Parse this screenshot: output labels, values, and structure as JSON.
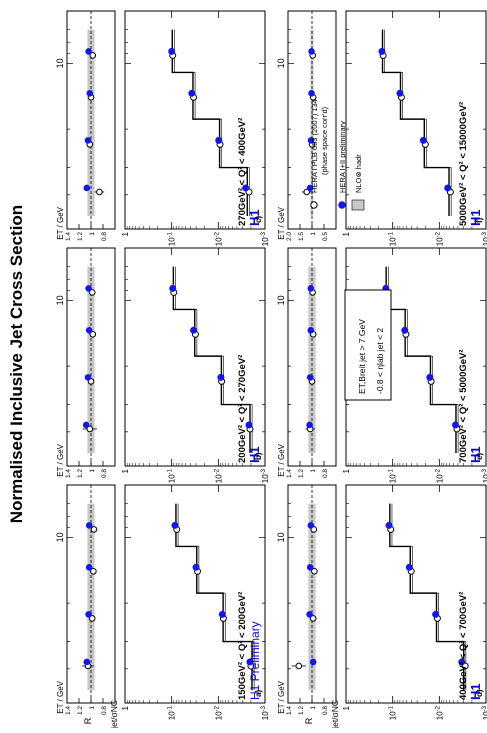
{
  "page": {
    "title": "Normalised Inclusive Jet Cross Section"
  },
  "common": {
    "h1_label": "H1",
    "preliminary_label": "H1 Preliminary",
    "ylabel_top": "σjet/σNC",
    "ylabel_ratio": "R",
    "xlabel": "ET / GeV",
    "x_tick_label": "10",
    "cut_box": [
      "ET,Breit jet > 7 GeV",
      "-0.8 < ηlab jet < 2"
    ],
    "legend": [
      {
        "label": "HERA I PLB 653 (2007) 134",
        "marker": "open-circle"
      },
      {
        "label": "(phase space corr'd)",
        "marker": "none"
      },
      {
        "label": "HERA I+II preliminary",
        "marker": "filled-circle"
      },
      {
        "label": "NLO⊗ hadr",
        "marker": "band"
      }
    ],
    "colors": {
      "hera12": "#1515ee",
      "hera1": "#000000",
      "band": "#c8c8c8",
      "h1blue": "#0a0ad0"
    }
  },
  "chart_data": [
    {
      "panel": "a)",
      "type": "scatter",
      "q2_range": "150GeV² < Q² < 200GeV²",
      "x_bins": [
        7,
        11,
        18,
        30,
        50
      ],
      "ylim": [
        0.001,
        1
      ],
      "yscale": "log",
      "xscale": "log",
      "series": [
        {
          "name": "HERA I+II preliminary",
          "x": [
            9,
            14,
            23,
            38
          ],
          "values": [
            0.085,
            0.03,
            0.0082,
            0.0021
          ]
        },
        {
          "name": "HERA I PLB 653 (2007) 134",
          "x": [
            9,
            14,
            23,
            38
          ],
          "values": [
            0.078,
            0.028,
            0.0078,
            0.002
          ]
        },
        {
          "name": "NLO⊗ hadr",
          "x": [
            9,
            14,
            23,
            38
          ],
          "values": [
            0.081,
            0.029,
            0.0079,
            0.0019
          ]
        }
      ],
      "ratio": {
        "ylim": [
          0.6,
          1.4
        ],
        "ticks": [
          0.8,
          1,
          1.2,
          1.4
        ],
        "hera12": [
          1.03,
          1.03,
          1.04,
          1.07
        ],
        "hera1": [
          0.95,
          0.96,
          0.98,
          1.05
        ],
        "hera1_err": [
          0.03,
          0.03,
          0.05,
          0.1
        ]
      }
    },
    {
      "panel": "b)",
      "type": "scatter",
      "q2_range": "200GeV² < Q² < 270GeV²",
      "x_bins": [
        7,
        11,
        18,
        30,
        50
      ],
      "ylim": [
        0.001,
        1
      ],
      "yscale": "log",
      "xscale": "log",
      "series": [
        {
          "name": "HERA I+II preliminary",
          "x": [
            9,
            14,
            23,
            38
          ],
          "values": [
            0.095,
            0.034,
            0.0088,
            0.0022
          ]
        },
        {
          "name": "HERA I PLB 653 (2007) 134",
          "x": [
            9,
            14,
            23,
            38
          ],
          "values": [
            0.09,
            0.031,
            0.0085,
            0.0021
          ]
        },
        {
          "name": "NLO⊗ hadr",
          "x": [
            9,
            14,
            23,
            38
          ],
          "values": [
            0.092,
            0.032,
            0.0086,
            0.0021
          ]
        }
      ],
      "ratio": {
        "ylim": [
          0.6,
          1.4
        ],
        "ticks": [
          0.8,
          1,
          1.2,
          1.4
        ],
        "hera12": [
          1.04,
          1.03,
          1.05,
          1.08
        ],
        "hera1": [
          0.98,
          0.97,
          1.0,
          1.02
        ],
        "hera1_err": [
          0.03,
          0.03,
          0.05,
          0.12
        ]
      }
    },
    {
      "panel": "c)",
      "type": "scatter",
      "q2_range": "270GeV² < Q² < 400GeV²",
      "x_bins": [
        7,
        11,
        18,
        30,
        50
      ],
      "ylim": [
        0.001,
        1
      ],
      "yscale": "log",
      "xscale": "log",
      "series": [
        {
          "name": "HERA I+II preliminary",
          "x": [
            9,
            14,
            23,
            38
          ],
          "values": [
            0.1,
            0.037,
            0.0098,
            0.0026
          ]
        },
        {
          "name": "HERA I PLB 653 (2007) 134",
          "x": [
            9,
            14,
            23,
            38
          ],
          "values": [
            0.095,
            0.034,
            0.0092,
            0.0022
          ]
        },
        {
          "name": "NLO⊗ hadr",
          "x": [
            9,
            14,
            23,
            38
          ],
          "values": [
            0.097,
            0.035,
            0.0094,
            0.0024
          ]
        }
      ],
      "ratio": {
        "ylim": [
          0.6,
          1.4
        ],
        "ticks": [
          0.8,
          1,
          1.2,
          1.4
        ],
        "hera12": [
          1.04,
          1.02,
          1.05,
          1.07
        ],
        "hera1": [
          0.97,
          1.0,
          1.02,
          0.86
        ],
        "hera1_err": [
          0.03,
          0.03,
          0.05,
          0.08
        ]
      }
    },
    {
      "panel": "d)",
      "type": "scatter",
      "q2_range": "400GeV² < Q² < 700GeV²",
      "x_bins": [
        7,
        11,
        18,
        30,
        50
      ],
      "ylim": [
        0.001,
        1
      ],
      "yscale": "log",
      "xscale": "log",
      "series": [
        {
          "name": "HERA I+II preliminary",
          "x": [
            9,
            14,
            23,
            38
          ],
          "values": [
            0.12,
            0.044,
            0.012,
            0.0033
          ]
        },
        {
          "name": "HERA I PLB 653 (2007) 134",
          "x": [
            9,
            14,
            23,
            38
          ],
          "values": [
            0.11,
            0.04,
            0.011,
            0.0028
          ]
        },
        {
          "name": "NLO⊗ hadr",
          "x": [
            9,
            14,
            23,
            38
          ],
          "values": [
            0.115,
            0.042,
            0.0115,
            0.003
          ]
        }
      ],
      "ratio": {
        "ylim": [
          0.6,
          1.4
        ],
        "ticks": [
          0.8,
          1,
          1.2,
          1.4
        ],
        "hera12": [
          1.02,
          1.03,
          1.04,
          0.98
        ],
        "hera1": [
          0.97,
          0.96,
          0.98,
          1.22
        ],
        "hera1_err": [
          0.03,
          0.03,
          0.05,
          0.12
        ]
      }
    },
    {
      "panel": "e)",
      "type": "scatter",
      "q2_range": "700GeV² < Q² < 5000GeV²",
      "x_bins": [
        7,
        11,
        18,
        30,
        50
      ],
      "ylim": [
        0.001,
        1
      ],
      "yscale": "log",
      "xscale": "log",
      "series": [
        {
          "name": "HERA I+II preliminary",
          "x": [
            9,
            14,
            23,
            38
          ],
          "values": [
            0.14,
            0.055,
            0.016,
            0.0045
          ]
        },
        {
          "name": "HERA I PLB 653 (2007) 134",
          "x": [
            9,
            14,
            23,
            38
          ],
          "values": [
            0.135,
            0.052,
            0.015,
            0.0042
          ]
        },
        {
          "name": "NLO⊗ hadr",
          "x": [
            9,
            14,
            23,
            38
          ],
          "values": [
            0.138,
            0.054,
            0.0155,
            0.0044
          ]
        }
      ],
      "ratio": {
        "ylim": [
          0.6,
          1.4
        ],
        "ticks": [
          0.8,
          1,
          1.2,
          1.4
        ],
        "hera12": [
          1.02,
          1.02,
          1.03,
          1.04
        ],
        "hera1": [
          0.99,
          0.98,
          1.0,
          1.03
        ],
        "hera1_err": [
          0.02,
          0.03,
          0.04,
          0.08
        ]
      }
    },
    {
      "panel": "f)",
      "type": "scatter",
      "q2_range": "5000GeV² < Q² < 15000GeV²",
      "x_bins": [
        7,
        11,
        18,
        30,
        50
      ],
      "ylim": [
        0.001,
        1
      ],
      "yscale": "log",
      "xscale": "log",
      "series": [
        {
          "name": "HERA I+II preliminary",
          "x": [
            9,
            14,
            23,
            38
          ],
          "values": [
            0.17,
            0.07,
            0.022,
            0.0066
          ]
        },
        {
          "name": "HERA I PLB 653 (2007) 134",
          "x": [
            9,
            14,
            23,
            38
          ],
          "values": [
            0.16,
            0.065,
            0.02,
            0.0058
          ]
        },
        {
          "name": "NLO⊗ hadr",
          "x": [
            9,
            14,
            23,
            38
          ],
          "values": [
            0.165,
            0.068,
            0.021,
            0.0062
          ]
        }
      ],
      "ratio": {
        "ylim": [
          0,
          2
        ],
        "ticks": [
          0.5,
          1,
          1.5,
          2.0
        ],
        "hera12": [
          1.02,
          1.02,
          1.04,
          1.08
        ],
        "hera1": [
          0.97,
          0.95,
          1.0,
          1.22
        ],
        "hera1_err": [
          0.05,
          0.06,
          0.1,
          0.2
        ]
      }
    }
  ]
}
